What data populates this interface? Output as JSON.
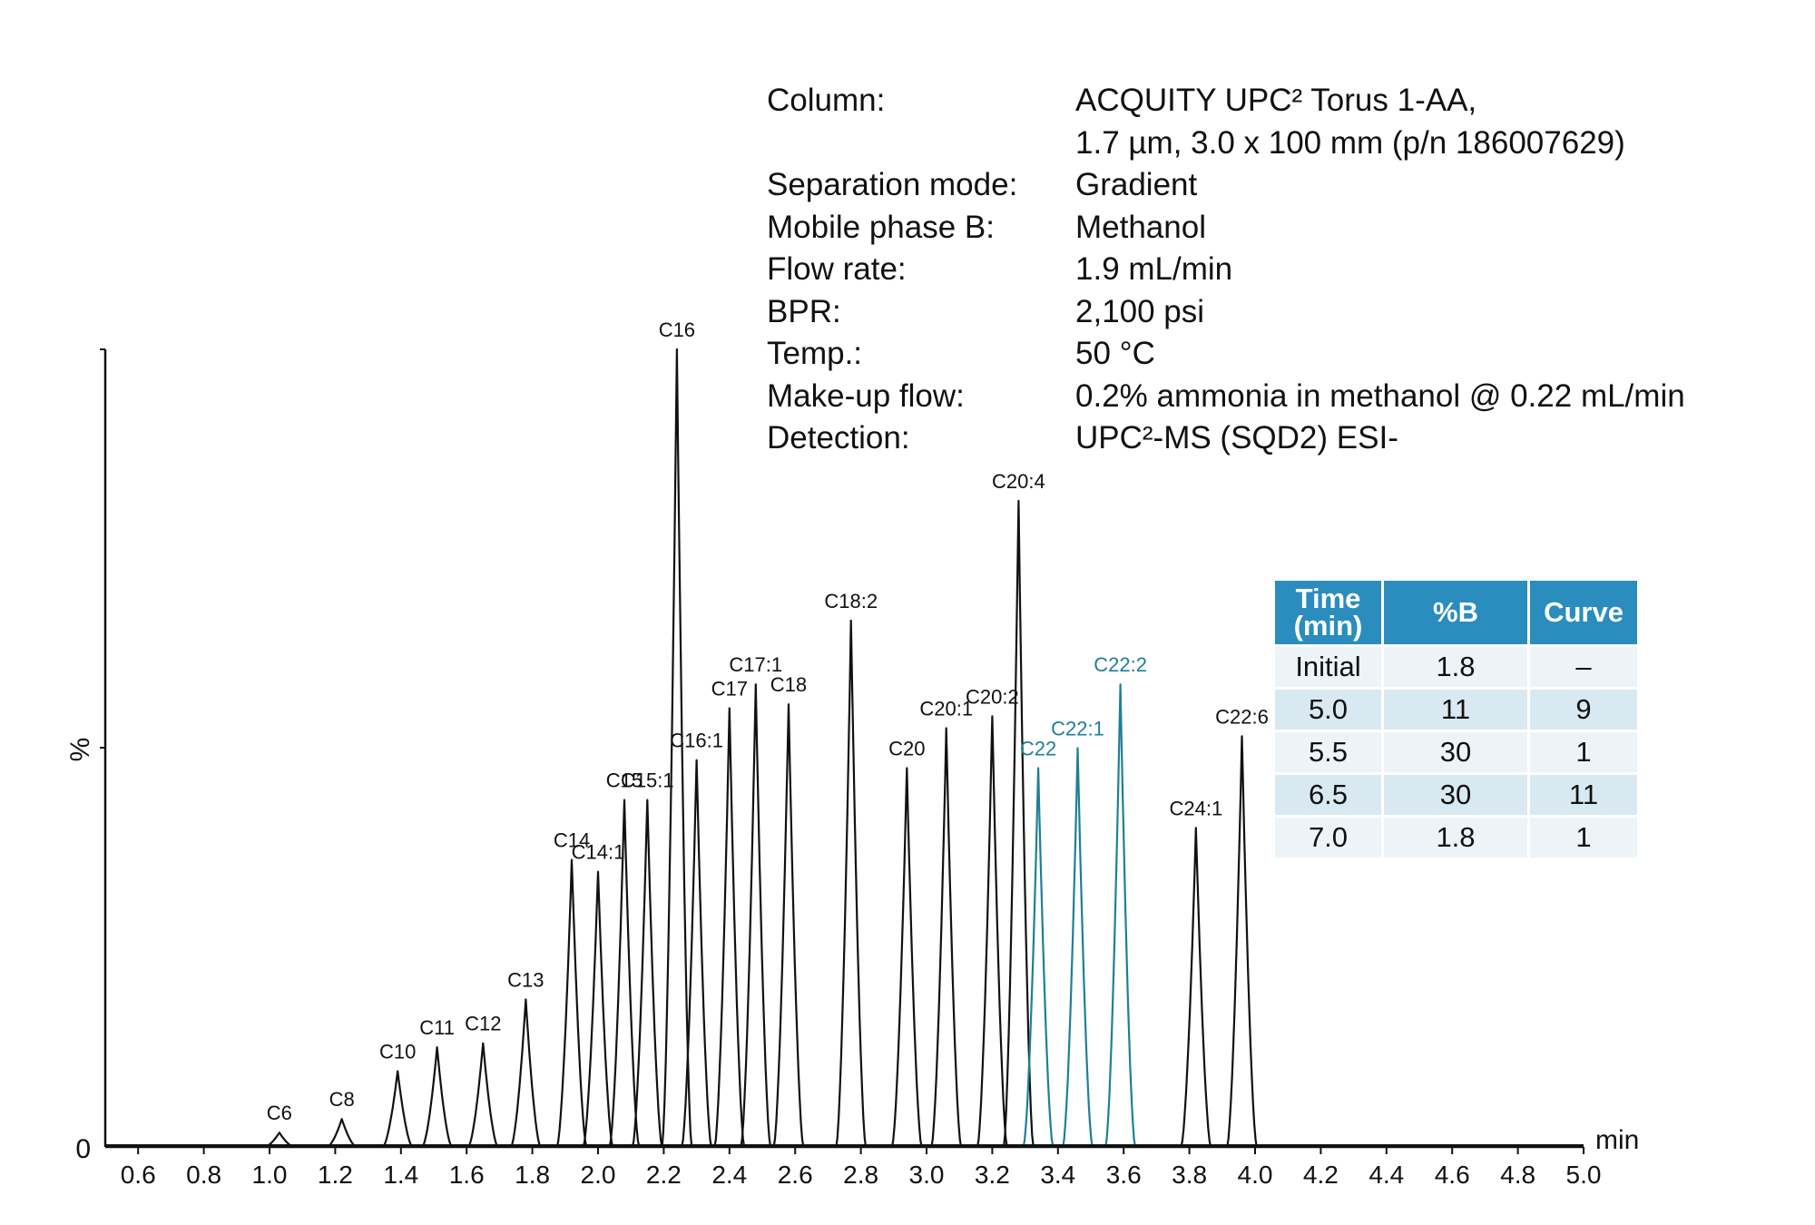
{
  "conditions": {
    "rows": [
      {
        "key": "Column:",
        "value": "ACQUITY UPC² Torus 1-AA,"
      },
      {
        "key": "",
        "value": "1.7 µm, 3.0 x 100 mm (p/n 186007629)"
      },
      {
        "key": "Separation mode:",
        "value": "Gradient"
      },
      {
        "key": "Mobile phase B:",
        "value": "Methanol"
      },
      {
        "key": "Flow rate:",
        "value": "1.9 mL/min"
      },
      {
        "key": "BPR:",
        "value": "2,100 psi"
      },
      {
        "key": "Temp.:",
        "value": "50 °C"
      },
      {
        "key": "Make-up flow:",
        "value": "0.2% ammonia in methanol @ 0.22 mL/min"
      },
      {
        "key": "Detection:",
        "value": "UPC²-MS (SQD2) ESI-"
      }
    ]
  },
  "gradient_table": {
    "headers": [
      "Time (min)",
      "%B",
      "Curve"
    ],
    "rows": [
      [
        "Initial",
        "1.8",
        "–"
      ],
      [
        "5.0",
        "11",
        "9"
      ],
      [
        "5.5",
        "30",
        "1"
      ],
      [
        "6.5",
        "30",
        "11"
      ],
      [
        "7.0",
        "1.8",
        "1"
      ]
    ],
    "colors": {
      "header_bg": "#2a8dbd",
      "row_odd": "#edf4f8",
      "row_even": "#d8e9f1"
    }
  },
  "chart_data": {
    "type": "line",
    "xlabel": "min",
    "ylabel": "%",
    "xlim": [
      0.5,
      5.0
    ],
    "ylim": [
      0,
      100
    ],
    "x_ticks": [
      "0.6",
      "0.8",
      "1.0",
      "1.2",
      "1.4",
      "1.6",
      "1.8",
      "2.0",
      "2.2",
      "2.4",
      "2.6",
      "2.8",
      "3.0",
      "3.2",
      "3.4",
      "3.6",
      "3.8",
      "4.0",
      "4.2",
      "4.4",
      "4.6",
      "4.8",
      "5.0"
    ],
    "y_ticks": [
      "0",
      ""
    ],
    "colors": {
      "black": "#111111",
      "teal": "#1f7f96"
    },
    "peaks": [
      {
        "name": "C6",
        "rt": 1.03,
        "height": 1.8,
        "color": "black"
      },
      {
        "name": "C8",
        "rt": 1.22,
        "height": 3.5,
        "color": "black"
      },
      {
        "name": "C10",
        "rt": 1.39,
        "height": 9.5,
        "color": "black"
      },
      {
        "name": "C11",
        "rt": 1.51,
        "height": 12.5,
        "color": "black"
      },
      {
        "name": "C12",
        "rt": 1.65,
        "height": 13.0,
        "color": "black"
      },
      {
        "name": "C13",
        "rt": 1.78,
        "height": 18.5,
        "color": "black"
      },
      {
        "name": "C14",
        "rt": 1.92,
        "height": 36.0,
        "color": "black"
      },
      {
        "name": "C14:1",
        "rt": 2.0,
        "height": 34.5,
        "color": "black"
      },
      {
        "name": "C15",
        "rt": 2.08,
        "height": 43.5,
        "color": "black"
      },
      {
        "name": "C15:1",
        "rt": 2.15,
        "height": 43.5,
        "color": "black"
      },
      {
        "name": "C16",
        "rt": 2.24,
        "height": 100.0,
        "color": "black"
      },
      {
        "name": "C16:1",
        "rt": 2.3,
        "height": 48.5,
        "color": "black"
      },
      {
        "name": "C17",
        "rt": 2.4,
        "height": 55.0,
        "color": "black"
      },
      {
        "name": "C17:1",
        "rt": 2.48,
        "height": 58.0,
        "color": "black"
      },
      {
        "name": "C18",
        "rt": 2.58,
        "height": 55.5,
        "color": "black"
      },
      {
        "name": "C18:2",
        "rt": 2.77,
        "height": 66.0,
        "color": "black"
      },
      {
        "name": "C20",
        "rt": 2.94,
        "height": 47.5,
        "color": "black"
      },
      {
        "name": "C20:1",
        "rt": 3.06,
        "height": 52.5,
        "color": "black"
      },
      {
        "name": "C20:2",
        "rt": 3.2,
        "height": 54.0,
        "color": "black"
      },
      {
        "name": "C20:4",
        "rt": 3.28,
        "height": 81.0,
        "color": "black"
      },
      {
        "name": "C22",
        "rt": 3.34,
        "height": 47.5,
        "color": "teal"
      },
      {
        "name": "C22:1",
        "rt": 3.46,
        "height": 50.0,
        "color": "teal"
      },
      {
        "name": "C22:2",
        "rt": 3.59,
        "height": 58.0,
        "color": "teal"
      },
      {
        "name": "C24:1",
        "rt": 3.82,
        "height": 40.0,
        "color": "black"
      },
      {
        "name": "C22:6",
        "rt": 3.96,
        "height": 51.5,
        "color": "black"
      }
    ]
  }
}
